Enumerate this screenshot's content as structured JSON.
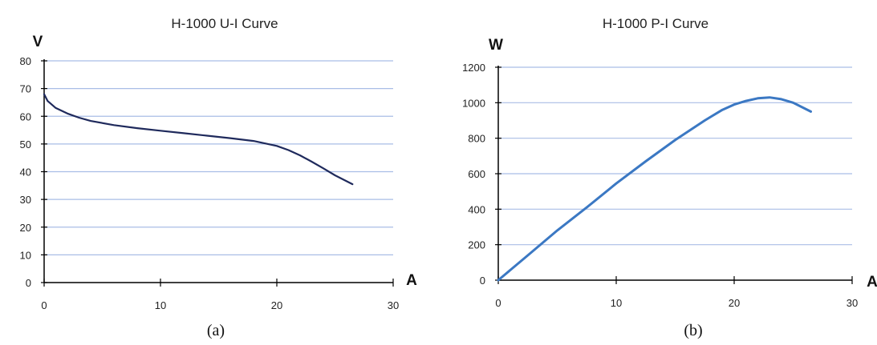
{
  "chart_data": [
    {
      "type": "line",
      "caption": "(a)",
      "title": "H-1000 U-I Curve",
      "xlabel": "A",
      "ylabel": "V",
      "xlim": [
        0,
        30
      ],
      "ylim": [
        0,
        80
      ],
      "xticks": [
        0,
        10,
        20,
        30
      ],
      "yticks": [
        0,
        10,
        20,
        30,
        40,
        50,
        60,
        70,
        80
      ],
      "grid": "horizontal",
      "line_color": "#1f2a5c",
      "series": [
        {
          "x": [
            0,
            0.3,
            1,
            2,
            3,
            4,
            6,
            8,
            10,
            12,
            14,
            16,
            18,
            20,
            21,
            22,
            23,
            24,
            25,
            26.5
          ],
          "values": [
            68,
            65.5,
            63,
            61,
            59.5,
            58.3,
            56.8,
            55.7,
            54.8,
            53.9,
            53,
            52.1,
            51.1,
            49.3,
            47.8,
            45.9,
            43.6,
            41.2,
            38.7,
            35.5
          ]
        }
      ]
    },
    {
      "type": "line",
      "caption": "(b)",
      "title": "H-1000 P-I Curve",
      "xlabel": "A",
      "ylabel": "W",
      "xlim": [
        0,
        30
      ],
      "ylim": [
        0,
        1200
      ],
      "xticks": [
        0,
        10,
        20,
        30
      ],
      "yticks": [
        0,
        200,
        400,
        600,
        800,
        1000,
        1200
      ],
      "grid": "horizontal",
      "line_color": "#3b78c3",
      "series": [
        {
          "x": [
            0,
            2.5,
            5,
            7.5,
            10,
            12.5,
            15,
            17.5,
            19,
            20,
            21,
            22,
            23,
            24,
            25,
            26.5
          ],
          "values": [
            0,
            140,
            280,
            410,
            545,
            670,
            790,
            900,
            960,
            990,
            1010,
            1025,
            1030,
            1020,
            1000,
            950
          ]
        }
      ]
    }
  ]
}
